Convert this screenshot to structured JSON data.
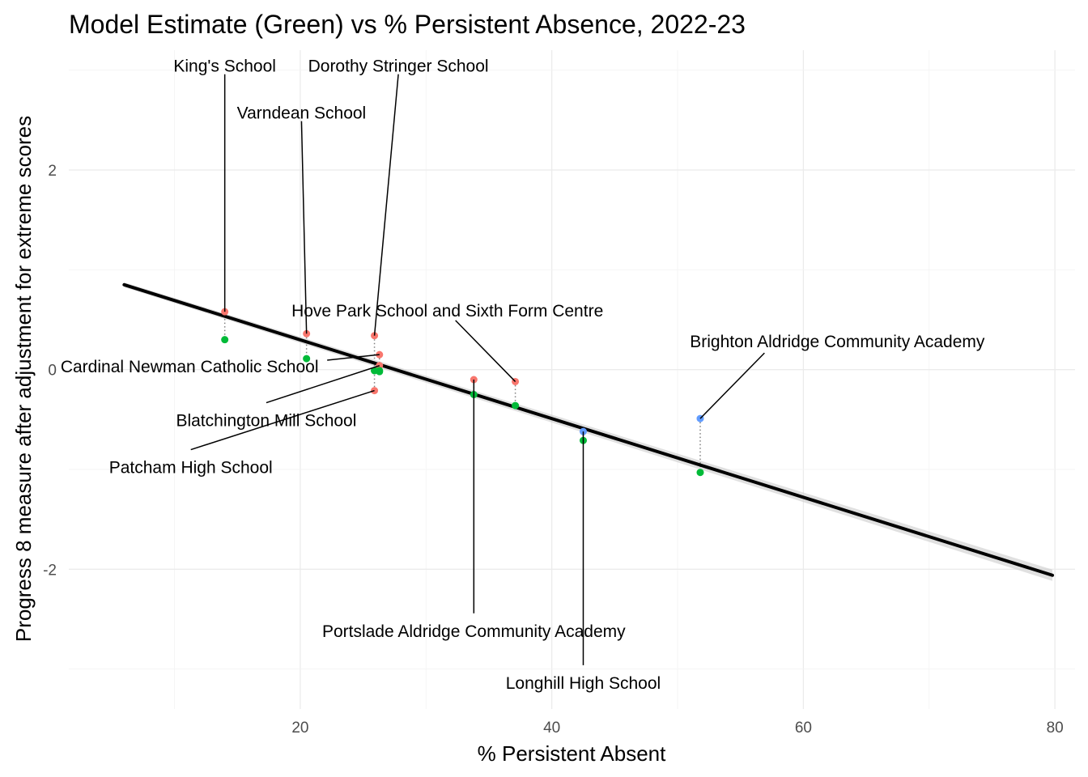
{
  "chart_data": {
    "type": "scatter",
    "title": "Model Estimate (Green) vs % Persistent Absence, 2022-23",
    "xlabel": "% Persistent Absent",
    "ylabel": "Progress 8 measure after adjustment for extreme scores",
    "xlim": [
      1.6,
      81.6
    ],
    "ylim": [
      -3.4,
      3.2
    ],
    "x_ticks": [
      20,
      40,
      60,
      80
    ],
    "y_ticks": [
      -2,
      0,
      2
    ],
    "x_tick_labels": [
      "20",
      "40",
      "60",
      "80"
    ],
    "y_tick_labels": [
      "-2",
      "0",
      "2"
    ],
    "grid": true,
    "legend": "none",
    "colors": {
      "above_model": "#F8766D",
      "below_model": "#619CFF",
      "model_estimate": "#00BA38",
      "trend_line": "#000000",
      "confidence_band": "#cccccc",
      "connector": "#7f7f7f"
    },
    "trend_line": {
      "x": [
        6.0,
        79.8
      ],
      "y": [
        0.85,
        -2.06
      ]
    },
    "schools": [
      {
        "name": "King's School",
        "x": 14.0,
        "actual": 0.58,
        "model": 0.3
      },
      {
        "name": "Varndean School",
        "x": 20.5,
        "actual": 0.36,
        "model": 0.11
      },
      {
        "name": "Dorothy Stringer School",
        "x": 25.9,
        "actual": 0.34,
        "model": -0.01
      },
      {
        "name": "Cardinal Newman Catholic School",
        "x": 26.3,
        "actual": 0.15,
        "model": -0.02
      },
      {
        "name": "Blatchington Mill School",
        "x": 26.3,
        "actual": 0.04,
        "model": -0.01
      },
      {
        "name": "Patcham High School",
        "x": 25.9,
        "actual": -0.21,
        "model": -0.01
      },
      {
        "name": "Portslade Aldridge Community Academy",
        "x": 33.8,
        "actual": -0.1,
        "model": -0.25
      },
      {
        "name": "Hove Park School and Sixth Form Centre",
        "x": 37.1,
        "actual": -0.12,
        "model": -0.36
      },
      {
        "name": "Longhill High School",
        "x": 42.5,
        "actual": -0.62,
        "model": -0.71
      },
      {
        "name": "Brighton Aldridge Community Academy",
        "x": 51.8,
        "actual": -0.49,
        "model": -1.03
      }
    ],
    "labels": [
      {
        "text": "King's School",
        "x": 14.0,
        "y": 3.04,
        "anchor": "middle",
        "school": 0
      },
      {
        "text": "Varndean School",
        "x": 20.1,
        "y": 2.57,
        "anchor": "middle",
        "school": 1
      },
      {
        "text": "Dorothy Stringer School",
        "x": 27.8,
        "y": 3.04,
        "anchor": "middle",
        "school": 2
      },
      {
        "text": "Hove Park School and Sixth Form Centre",
        "x": 31.7,
        "y": 0.59,
        "anchor": "middle",
        "school": 7
      },
      {
        "text": "Brighton Aldridge Community Academy",
        "x": 62.7,
        "y": 0.28,
        "anchor": "middle",
        "school": 9
      },
      {
        "text": "Cardinal Newman Catholic School",
        "x": 11.2,
        "y": 0.03,
        "anchor": "middle",
        "school": 3
      },
      {
        "text": "Blatchington Mill School",
        "x": 17.3,
        "y": -0.51,
        "anchor": "middle",
        "school": 4
      },
      {
        "text": "Patcham High School",
        "x": 11.3,
        "y": -0.98,
        "anchor": "middle",
        "school": 5
      },
      {
        "text": "Portslade Aldridge Community Academy",
        "x": 33.8,
        "y": -2.62,
        "anchor": "middle",
        "school": 6
      },
      {
        "text": "Longhill High School",
        "x": 42.5,
        "y": -3.14,
        "anchor": "middle",
        "school": 8
      }
    ]
  }
}
